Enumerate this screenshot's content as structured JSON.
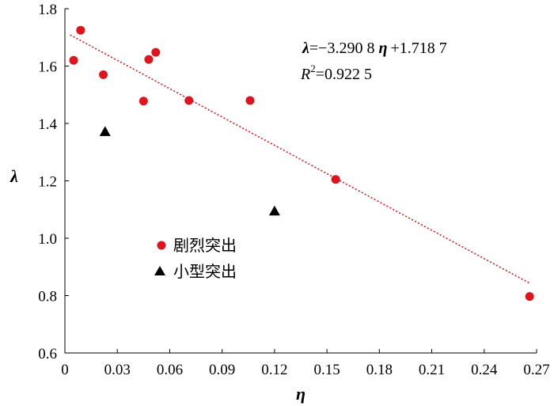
{
  "chart_data": {
    "type": "scatter",
    "xlabel": "η",
    "ylabel": "λ",
    "xlim": [
      0,
      0.27
    ],
    "ylim": [
      0.6,
      1.8
    ],
    "x_ticks": [
      "0",
      "0.03",
      "0.06",
      "0.09",
      "0.12",
      "0.15",
      "0.18",
      "0.21",
      "0.24",
      "0.27"
    ],
    "y_ticks": [
      "0.6",
      "0.8",
      "1.0",
      "1.2",
      "1.4",
      "1.6",
      "1.8"
    ],
    "grid": false,
    "legend_position": "center-left",
    "series": [
      {
        "name": "剧烈突出",
        "marker": "circle",
        "color": "#e0141e",
        "points": [
          {
            "x": 0.005,
            "y": 1.62
          },
          {
            "x": 0.009,
            "y": 1.725
          },
          {
            "x": 0.022,
            "y": 1.57
          },
          {
            "x": 0.045,
            "y": 1.478
          },
          {
            "x": 0.048,
            "y": 1.623
          },
          {
            "x": 0.052,
            "y": 1.648
          },
          {
            "x": 0.071,
            "y": 1.48
          },
          {
            "x": 0.106,
            "y": 1.48
          },
          {
            "x": 0.155,
            "y": 1.205
          },
          {
            "x": 0.266,
            "y": 0.797
          }
        ]
      },
      {
        "name": "小型突出",
        "marker": "triangle",
        "color": "#000000",
        "points": [
          {
            "x": 0.023,
            "y": 1.37
          },
          {
            "x": 0.12,
            "y": 1.093
          }
        ]
      }
    ],
    "trendline": {
      "slope": -3.2908,
      "intercept": 1.7187,
      "x_range": [
        0.003,
        0.266
      ],
      "color": "#e0141e",
      "style": "dotted"
    },
    "annotations": {
      "equation_lambda": "λ",
      "equation_body": "=−3.290 8",
      "equation_eta": "η",
      "equation_tail": "+1.718 7",
      "r2_label": "R",
      "r2_sup": "2",
      "r2_value": "=0.922 5"
    }
  }
}
